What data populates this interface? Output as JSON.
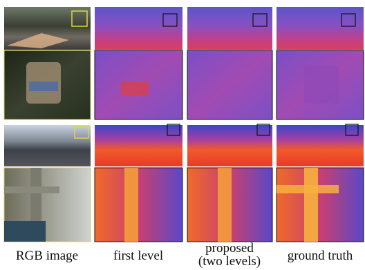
{
  "captions": [
    {
      "lines": [
        "RGB image"
      ]
    },
    {
      "lines": [
        "first level"
      ]
    },
    {
      "lines": [
        "proposed",
        "(two levels)"
      ]
    },
    {
      "lines": [
        "ground truth"
      ]
    }
  ]
}
